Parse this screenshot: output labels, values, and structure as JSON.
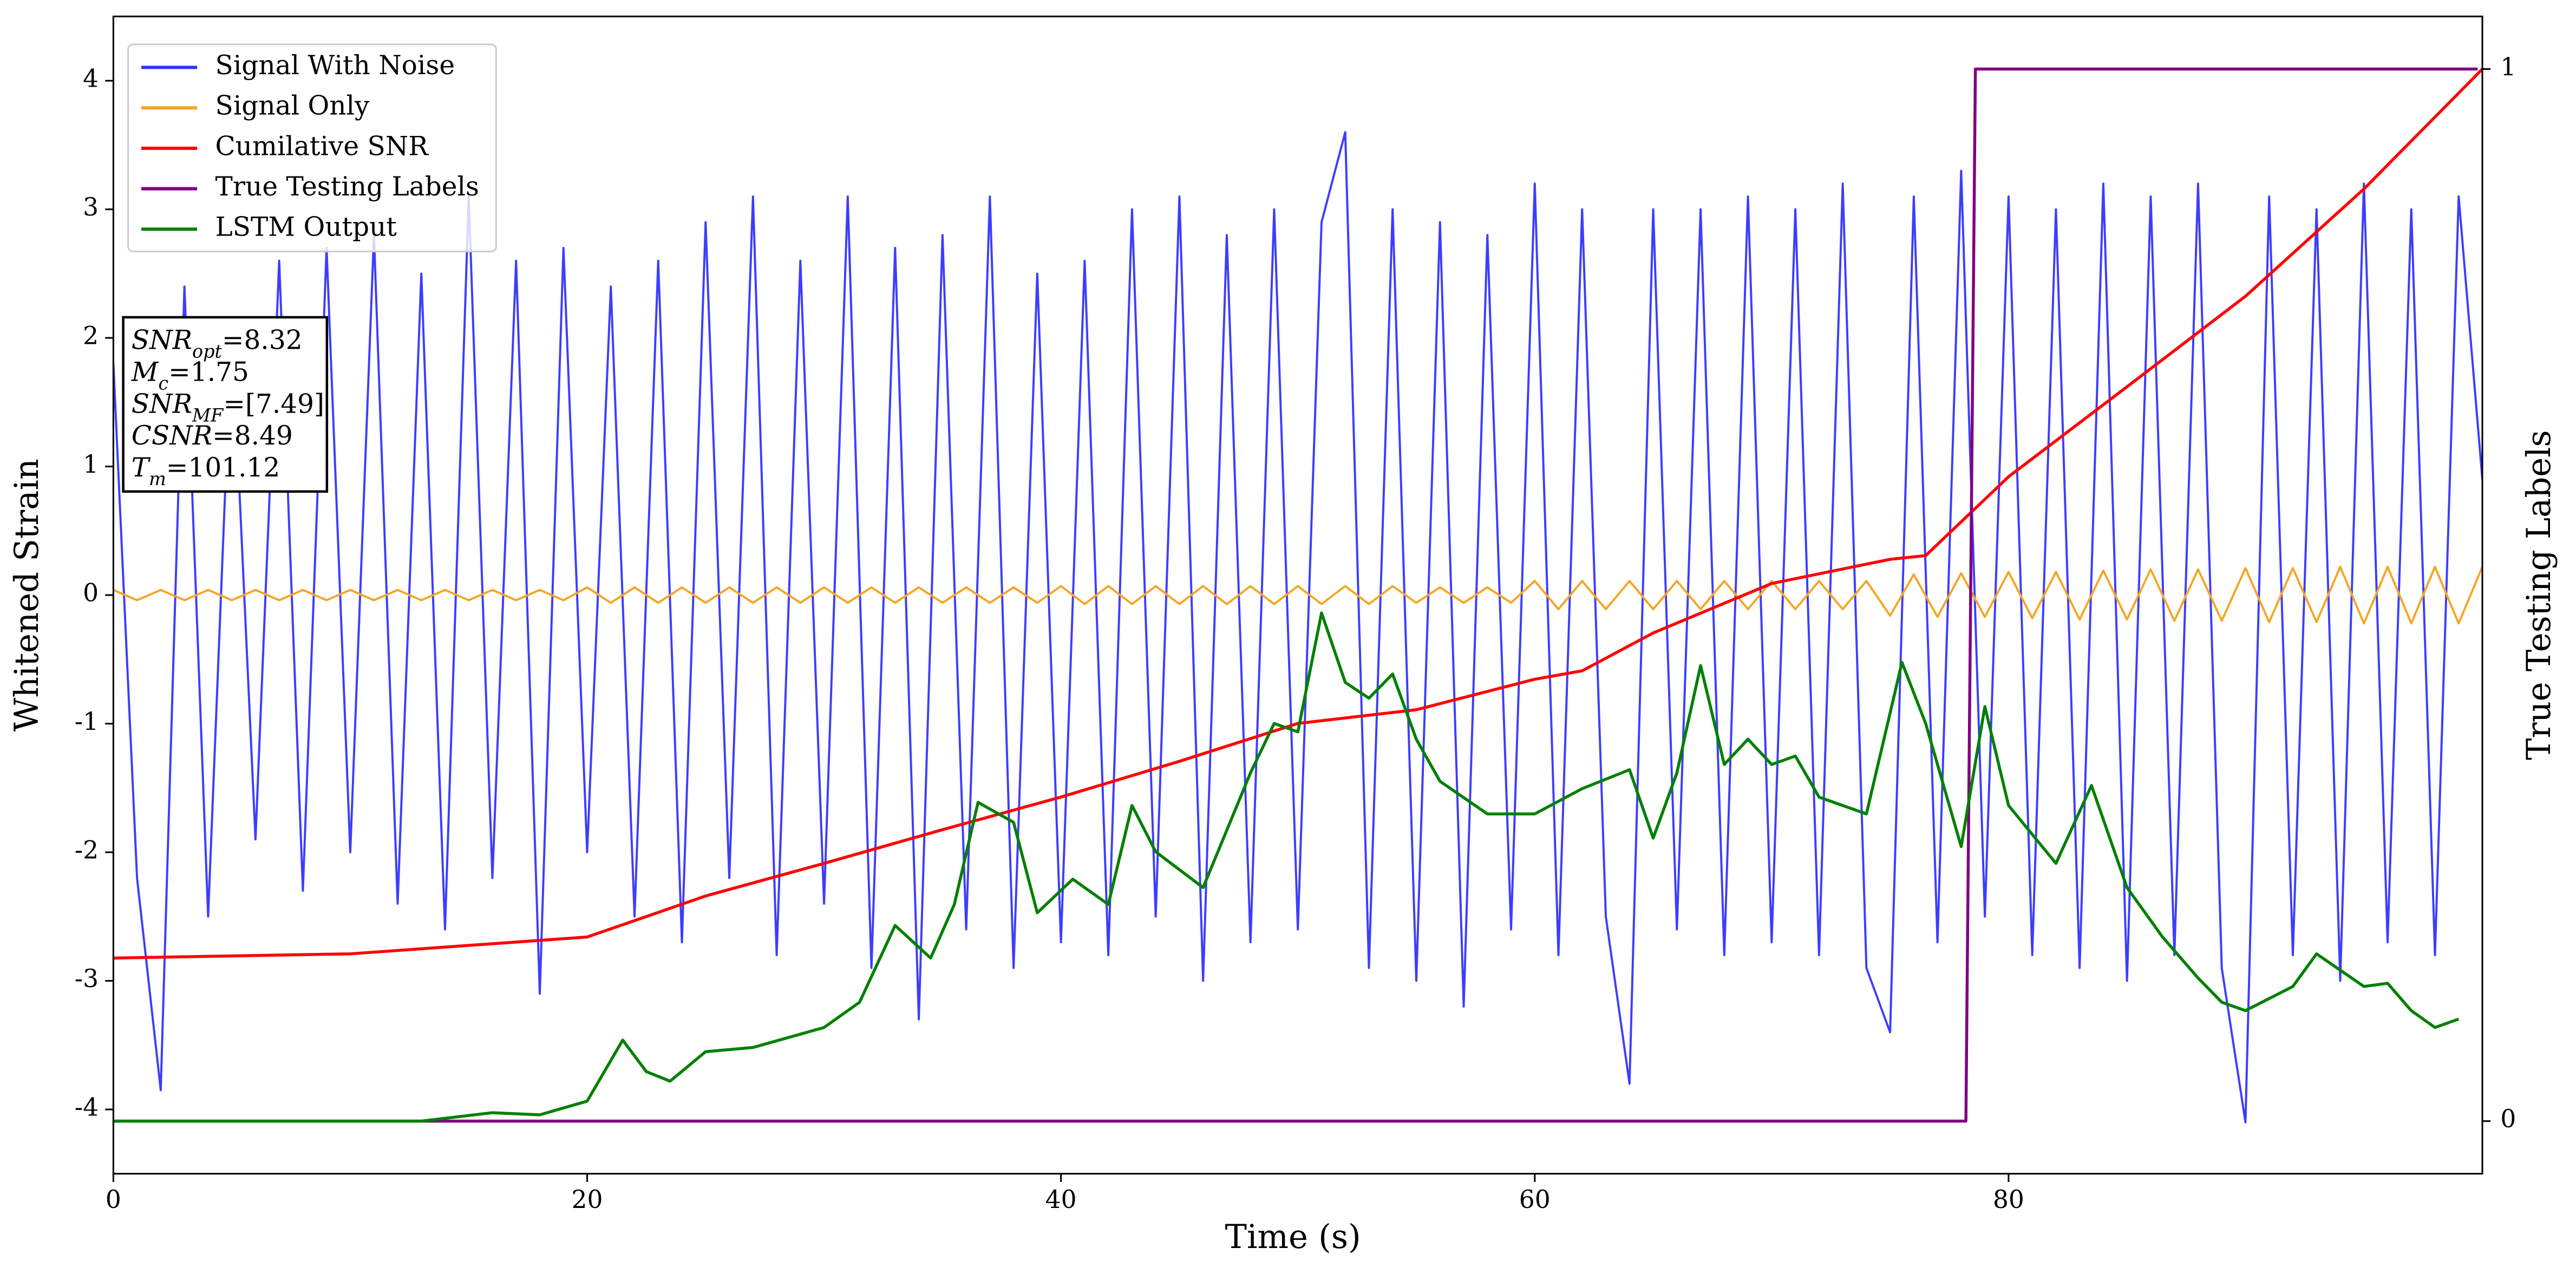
{
  "chart_data": {
    "type": "line",
    "xlabel": "Time (s)",
    "ylabel": "Whitened Strain",
    "y2label": "True Testing Labels",
    "xlim": [
      0,
      100
    ],
    "ylim": [
      -4.5,
      4.5
    ],
    "y2lim": [
      -0.05,
      1.05
    ],
    "xticks": [
      0,
      20,
      40,
      60,
      80
    ],
    "yticks": [
      -4,
      -3,
      -2,
      -1,
      0,
      1,
      2,
      3,
      4
    ],
    "y2ticks": [
      0,
      1
    ],
    "legend": "upper left",
    "x": [
      0,
      1,
      2,
      3,
      4,
      5,
      6,
      7,
      8,
      9,
      10,
      11,
      12,
      13,
      14,
      15,
      16,
      17,
      18,
      19,
      20,
      21,
      22,
      23,
      24,
      25,
      26,
      27,
      28,
      29,
      30,
      31,
      32,
      33,
      34,
      35,
      36,
      37,
      38,
      39,
      40,
      41,
      42,
      43,
      44,
      45,
      46,
      47,
      48,
      49,
      50,
      51,
      52,
      53,
      54,
      55,
      56,
      57,
      58,
      59,
      60,
      61,
      62,
      63,
      64,
      65,
      66,
      67,
      68,
      69,
      70,
      71,
      72,
      73,
      74,
      75,
      76,
      77,
      78,
      79,
      80,
      81,
      82,
      83,
      84,
      85,
      86,
      87,
      88,
      89,
      90,
      91,
      92,
      93,
      94,
      95,
      96,
      97,
      98,
      99,
      100
    ],
    "series": [
      {
        "name": "Signal With Noise",
        "color": "#3333ff",
        "values": [
          1.8,
          -2.2,
          -3.85,
          2.4,
          -2.5,
          2.1,
          -1.9,
          2.6,
          -2.3,
          2.7,
          -2.0,
          2.8,
          -2.4,
          2.5,
          -2.6,
          3.1,
          -2.2,
          2.6,
          -3.1,
          2.7,
          -2.0,
          2.4,
          -2.5,
          2.6,
          -2.7,
          2.9,
          -2.2,
          3.1,
          -2.8,
          2.6,
          -2.4,
          3.1,
          -2.9,
          2.7,
          -3.3,
          2.8,
          -2.6,
          3.1,
          -2.9,
          2.5,
          -2.7,
          2.6,
          -2.8,
          3.0,
          -2.5,
          3.1,
          -3.0,
          2.8,
          -2.7,
          3.0,
          -2.6,
          2.9,
          3.6,
          -2.9,
          3.0,
          -3.0,
          2.9,
          -3.2,
          2.8,
          -2.6,
          3.2,
          -2.8,
          3.0,
          -2.5,
          -3.8,
          3.0,
          -2.6,
          3.0,
          -2.8,
          3.1,
          -2.7,
          3.0,
          -2.8,
          3.2,
          -2.9,
          -3.4,
          3.1,
          -2.7,
          3.3,
          -2.5,
          3.1,
          -2.8,
          3.0,
          -2.9,
          3.2,
          -3.0,
          3.1,
          -2.8,
          3.2,
          -2.9,
          -4.1,
          3.1,
          -2.8,
          3.0,
          -3.0,
          3.2,
          -2.7,
          3.0,
          -2.8,
          3.1,
          0.9
        ]
      },
      {
        "name": "Signal Only",
        "color": "#f5a623",
        "values": [
          0.04,
          -0.04,
          0.04,
          -0.04,
          0.04,
          -0.04,
          0.04,
          -0.04,
          0.04,
          -0.04,
          0.04,
          -0.04,
          0.04,
          -0.04,
          0.04,
          -0.04,
          0.04,
          -0.04,
          0.04,
          -0.04,
          0.06,
          -0.06,
          0.06,
          -0.06,
          0.06,
          -0.06,
          0.06,
          -0.06,
          0.06,
          -0.06,
          0.06,
          -0.06,
          0.06,
          -0.06,
          0.06,
          -0.06,
          0.06,
          -0.06,
          0.06,
          -0.06,
          0.07,
          -0.07,
          0.07,
          -0.07,
          0.07,
          -0.07,
          0.07,
          -0.07,
          0.07,
          -0.07,
          0.07,
          -0.07,
          0.07,
          -0.07,
          0.07,
          -0.06,
          0.06,
          -0.06,
          0.06,
          -0.06,
          0.11,
          -0.11,
          0.11,
          -0.11,
          0.11,
          -0.11,
          0.11,
          -0.11,
          0.11,
          -0.11,
          0.11,
          -0.11,
          0.11,
          -0.11,
          0.11,
          -0.16,
          0.16,
          -0.17,
          0.17,
          -0.17,
          0.18,
          -0.18,
          0.18,
          -0.19,
          0.19,
          -0.19,
          0.2,
          -0.2,
          0.2,
          -0.2,
          0.21,
          -0.21,
          0.21,
          -0.21,
          0.22,
          -0.22,
          0.22,
          -0.22,
          0.22,
          -0.22,
          0.22
        ]
      },
      {
        "name": "Cumilative SNR",
        "color": "#ff0000",
        "axis": "y2",
        "x": [
          0,
          10,
          20,
          25,
          30,
          35,
          40,
          45,
          50,
          55,
          60,
          62,
          65,
          70,
          75,
          76.5,
          80,
          85,
          90,
          95,
          100
        ],
        "values": [
          0.155,
          0.159,
          0.175,
          0.214,
          0.245,
          0.277,
          0.308,
          0.342,
          0.378,
          0.391,
          0.42,
          0.428,
          0.464,
          0.511,
          0.534,
          0.5375,
          0.6125,
          0.698,
          0.784,
          0.886,
          1.0
        ]
      },
      {
        "name": "True Testing Labels",
        "color": "#800080",
        "axis": "y2",
        "x": [
          0,
          78.2,
          78.6,
          99.8
        ],
        "values": [
          0,
          0,
          1,
          1
        ]
      },
      {
        "name": "LSTM Output",
        "color": "#008000",
        "axis": "y2",
        "x": [
          0,
          13,
          16,
          18,
          20,
          21.5,
          22.5,
          23.5,
          25,
          27,
          30,
          31.5,
          33,
          34.5,
          35.5,
          36.5,
          38,
          39,
          40.5,
          42,
          43,
          44,
          46,
          48,
          49,
          50,
          51,
          52,
          53,
          54,
          55,
          56,
          58,
          60,
          62,
          64,
          65,
          66,
          67,
          68,
          69,
          70,
          71,
          72,
          74,
          75.5,
          76.5,
          78,
          79,
          80,
          82,
          83.5,
          85,
          86.5,
          88,
          89,
          90,
          92,
          93,
          95,
          96,
          97,
          98,
          99
        ],
        "values": [
          0,
          0,
          0.008,
          0.006,
          0.019,
          0.077,
          0.047,
          0.038,
          0.066,
          0.07,
          0.089,
          0.113,
          0.186,
          0.155,
          0.206,
          0.303,
          0.284,
          0.198,
          0.23,
          0.206,
          0.3,
          0.256,
          0.222,
          0.331,
          0.378,
          0.37,
          0.483,
          0.417,
          0.402,
          0.425,
          0.363,
          0.323,
          0.292,
          0.292,
          0.316,
          0.334,
          0.269,
          0.331,
          0.433,
          0.339,
          0.363,
          0.339,
          0.347,
          0.308,
          0.292,
          0.436,
          0.378,
          0.261,
          0.394,
          0.3,
          0.245,
          0.319,
          0.222,
          0.175,
          0.136,
          0.113,
          0.105,
          0.128,
          0.159,
          0.128,
          0.131,
          0.105,
          0.089,
          0.097
        ]
      }
    ],
    "annotations": [
      {
        "name": "SNR",
        "sub": "opt",
        "value": "=8.32"
      },
      {
        "name": "M",
        "sub": "c",
        "value": "=1.75"
      },
      {
        "name": "SNR",
        "sub": "MF",
        "value": "=[7.49]"
      },
      {
        "name": "CSNR",
        "value": "=8.49"
      },
      {
        "name": "T",
        "sub": "m",
        "value": "=101.12"
      }
    ]
  }
}
